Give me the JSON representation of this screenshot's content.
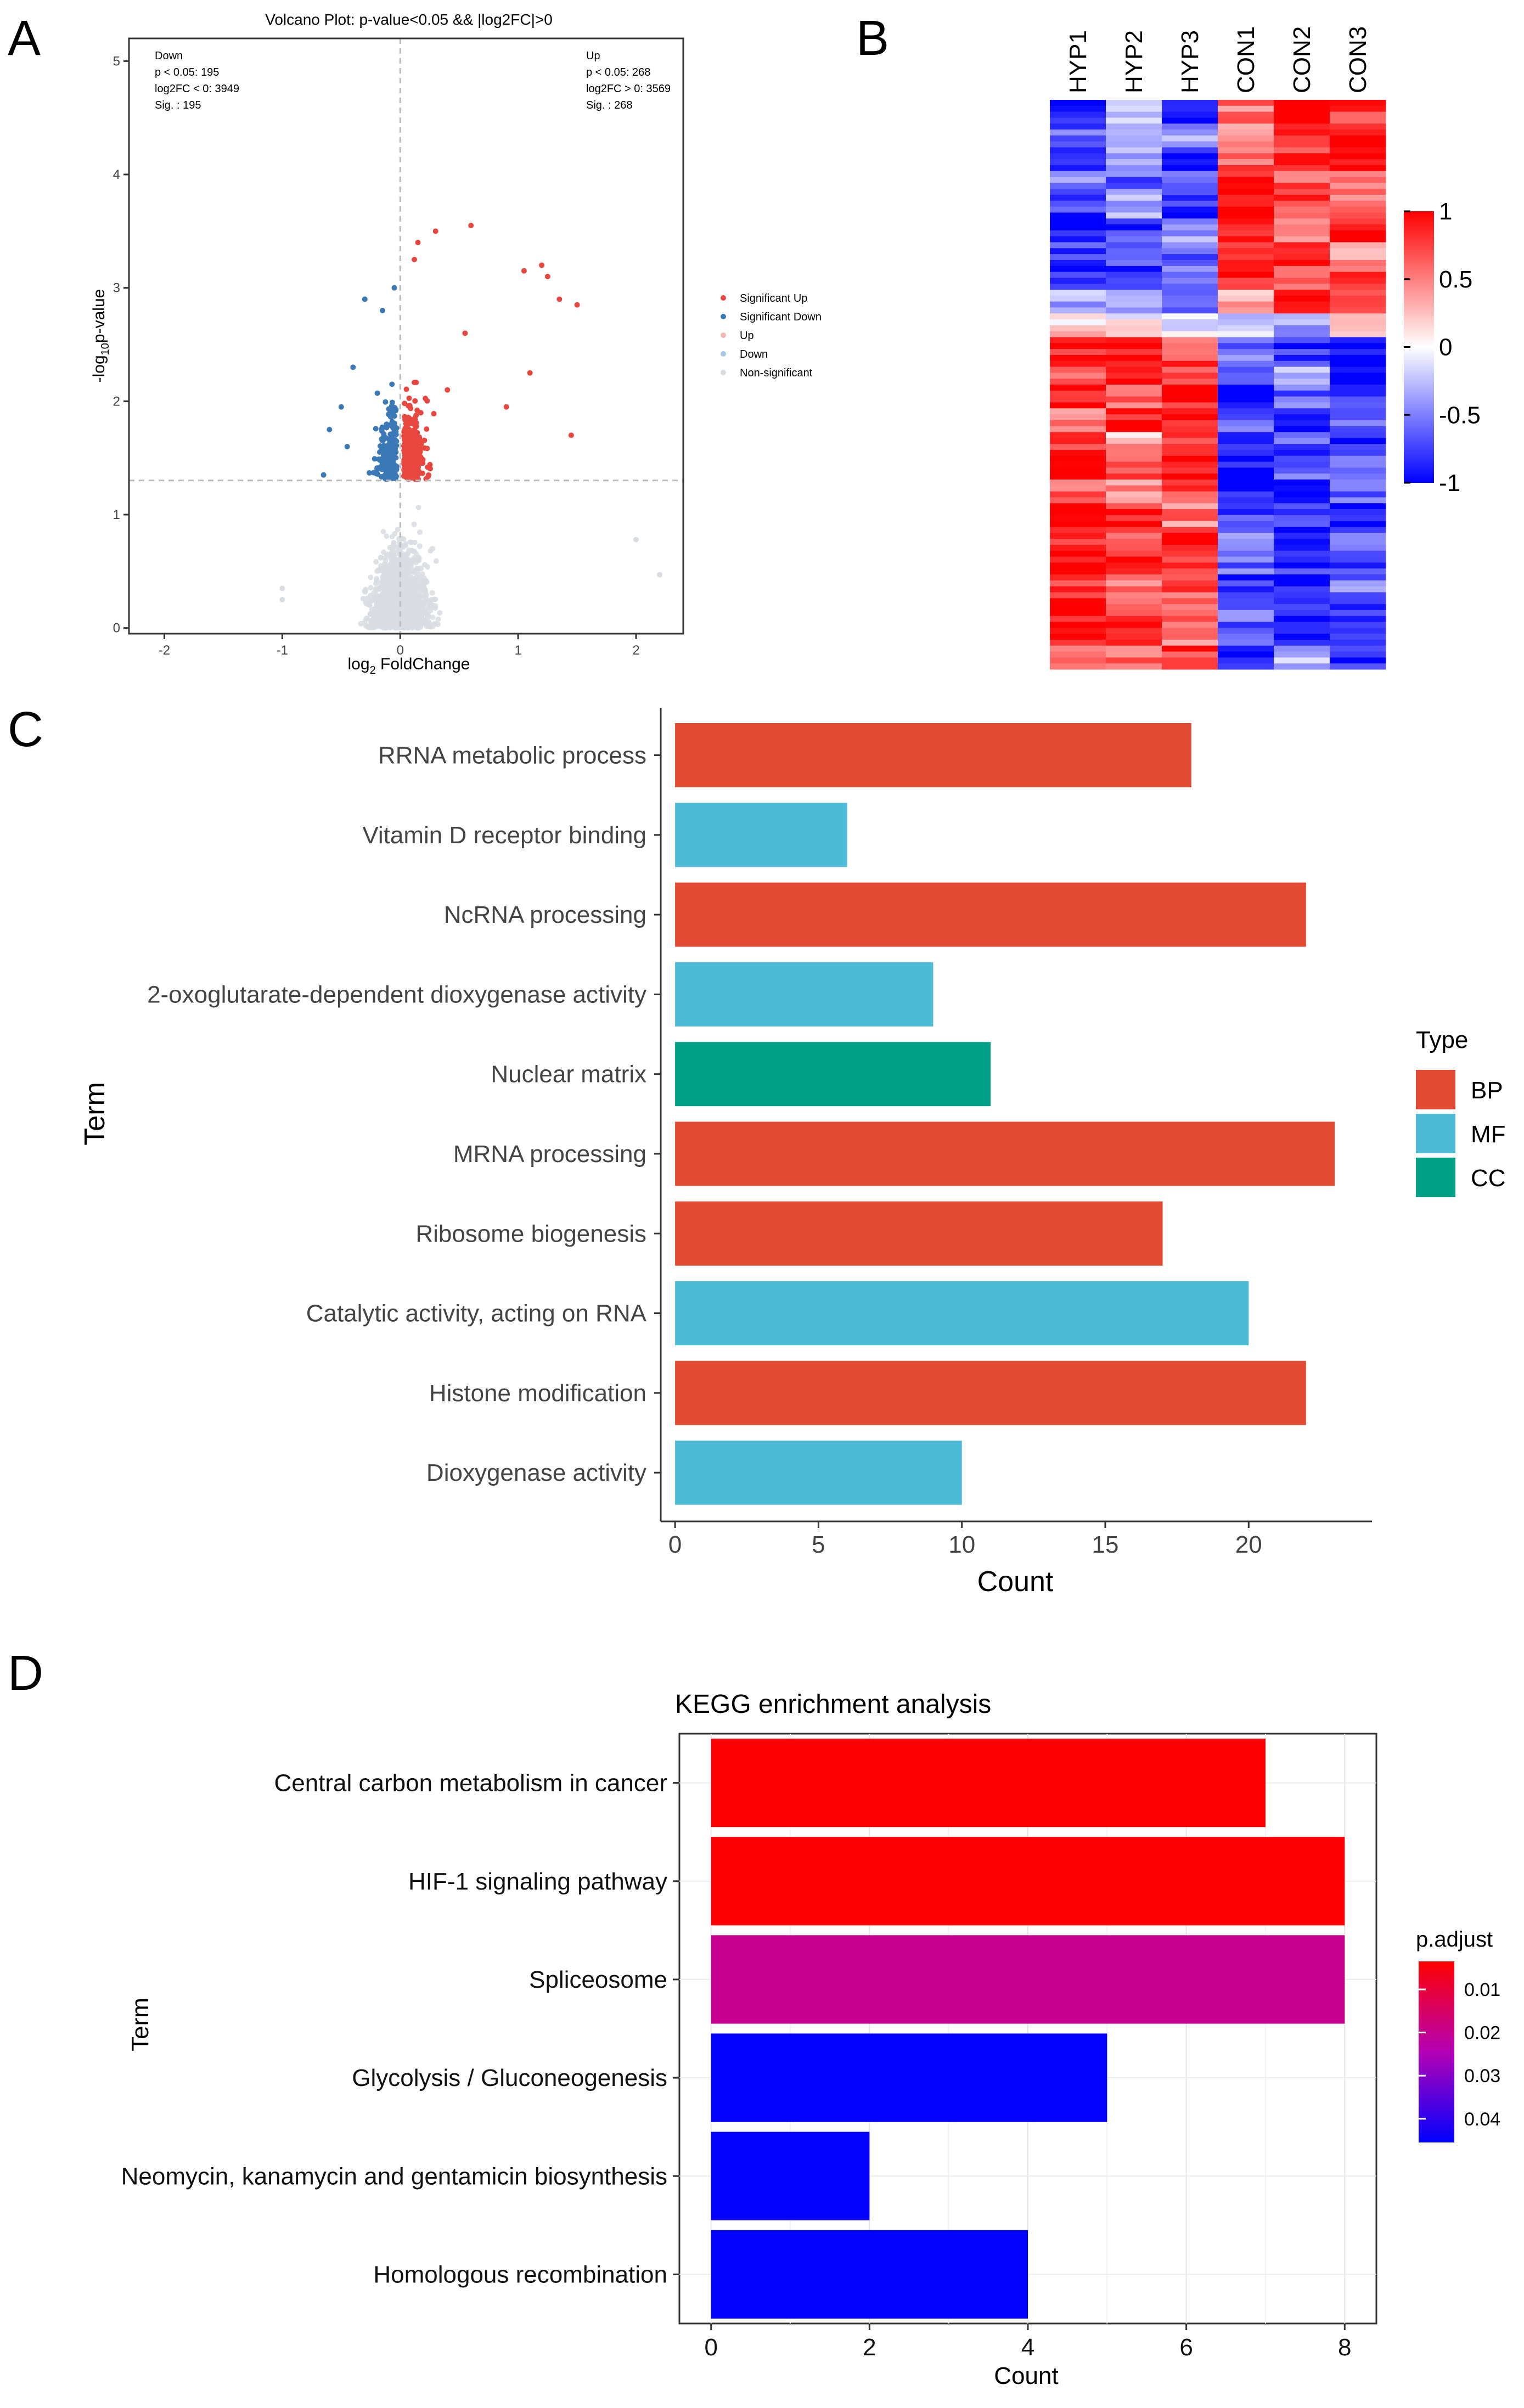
{
  "panels": {
    "A": "A",
    "B": "B",
    "C": "C",
    "D": "D"
  },
  "chart_data": [
    {
      "id": "A",
      "type": "scatter",
      "title": "Volcano Plot: p-value<0.05 && |log2FC|>0",
      "xlabel": "log2 FoldChange",
      "xlabel_base": "log",
      "xlabel_sub": "2",
      "xlabel_rest": " FoldChange",
      "ylabel_pre": "-log",
      "ylabel_sub": "10",
      "ylabel_post": "p-value",
      "xlim": [
        -2.3,
        2.4
      ],
      "ylim": [
        -0.05,
        5.2
      ],
      "x_ticks": [
        "-2",
        "-1",
        "0",
        "1",
        "2"
      ],
      "y_ticks": [
        "0",
        "1",
        "2",
        "3",
        "4",
        "5"
      ],
      "threshold_y": 1.301,
      "threshold_x": 0,
      "annot_down": [
        "Down",
        "p < 0.05: 195",
        "log2FC < 0: 3949",
        "Sig. : 195"
      ],
      "annot_up": [
        "Up",
        "p < 0.05: 268",
        "log2FC > 0: 3569",
        "Sig. : 268"
      ],
      "legend": [
        {
          "label": "Significant Up",
          "color": "#e8473f"
        },
        {
          "label": "Significant Down",
          "color": "#3a78b6"
        },
        {
          "label": "Up",
          "color": "#f4b8b3"
        },
        {
          "label": "Down",
          "color": "#a6c9e6"
        },
        {
          "label": "Non-significant",
          "color": "#d8dde3"
        }
      ],
      "highlight_points": [
        {
          "x": 0.6,
          "y": 3.55,
          "group": "up"
        },
        {
          "x": 0.3,
          "y": 3.5,
          "group": "up"
        },
        {
          "x": 0.15,
          "y": 3.4,
          "group": "up"
        },
        {
          "x": 0.12,
          "y": 3.25,
          "group": "up"
        },
        {
          "x": 1.2,
          "y": 3.2,
          "group": "up"
        },
        {
          "x": 1.25,
          "y": 3.1,
          "group": "up"
        },
        {
          "x": 1.05,
          "y": 3.15,
          "group": "up"
        },
        {
          "x": 1.5,
          "y": 2.85,
          "group": "up"
        },
        {
          "x": 1.35,
          "y": 2.9,
          "group": "up"
        },
        {
          "x": 0.55,
          "y": 2.6,
          "group": "up"
        },
        {
          "x": 1.1,
          "y": 2.25,
          "group": "up"
        },
        {
          "x": 0.9,
          "y": 1.95,
          "group": "up"
        },
        {
          "x": 1.45,
          "y": 1.7,
          "group": "up"
        },
        {
          "x": 0.4,
          "y": 2.1,
          "group": "up"
        },
        {
          "x": -0.05,
          "y": 3.0,
          "group": "down"
        },
        {
          "x": -0.15,
          "y": 2.8,
          "group": "down"
        },
        {
          "x": -0.3,
          "y": 2.9,
          "group": "down"
        },
        {
          "x": -0.4,
          "y": 2.3,
          "group": "down"
        },
        {
          "x": -0.6,
          "y": 1.75,
          "group": "down"
        },
        {
          "x": -0.65,
          "y": 1.35,
          "group": "down"
        },
        {
          "x": -0.5,
          "y": 1.95,
          "group": "down"
        },
        {
          "x": -0.45,
          "y": 1.6,
          "group": "down"
        },
        {
          "x": 2.0,
          "y": 0.78,
          "group": "ns"
        },
        {
          "x": 2.2,
          "y": 0.47,
          "group": "ns"
        },
        {
          "x": -1.0,
          "y": 0.35,
          "group": "ns"
        },
        {
          "x": -1.0,
          "y": 0.25,
          "group": "ns"
        }
      ]
    },
    {
      "id": "B",
      "type": "heatmap",
      "columns": [
        "HYP1",
        "HYP2",
        "HYP3",
        "CON1",
        "CON2",
        "CON3"
      ],
      "colorbar_ticks": [
        "1",
        "0.5",
        "0",
        "-0.5",
        "-1"
      ],
      "colorbar_range": [
        -1,
        1
      ],
      "colors": {
        "high": "#ff0000",
        "mid": "#ffffff",
        "low": "#0000ff"
      },
      "row_profile": [
        [
          -1,
          -0.3,
          -1,
          0.5,
          1,
          0.8
        ],
        [
          -0.6,
          -0.5,
          -0.4,
          0.3,
          0.9,
          1
        ],
        [
          -0.9,
          -0.3,
          -1,
          0.6,
          0.8,
          0.9
        ],
        [
          -0.5,
          -0.6,
          -0.7,
          1,
          0.6,
          0.4
        ],
        [
          -0.8,
          -0.4,
          -0.9,
          0.9,
          0.7,
          0.6
        ],
        [
          -1,
          -0.8,
          -0.3,
          1,
          0.5,
          0.9
        ],
        [
          -0.7,
          -0.6,
          -0.6,
          0.8,
          1,
          0.4
        ],
        [
          -0.9,
          -0.9,
          -0.5,
          0.9,
          0.7,
          0.7
        ],
        [
          -0.3,
          -0.4,
          -0.8,
          0.4,
          1,
          0.8
        ],
        [
          0.2,
          0,
          -0.1,
          -0.2,
          -0.3,
          0.1
        ],
        [
          0.9,
          0.8,
          0.7,
          -0.5,
          -0.8,
          -1
        ],
        [
          0.7,
          1,
          0.8,
          -0.7,
          -0.4,
          -1
        ],
        [
          1,
          0.6,
          0.9,
          -0.9,
          -0.6,
          -0.8
        ],
        [
          0.5,
          0.9,
          1,
          -0.6,
          -1,
          -0.5
        ],
        [
          0.8,
          0.3,
          0.7,
          -0.8,
          -0.7,
          -0.9
        ],
        [
          1,
          0.7,
          1,
          -1,
          -0.5,
          -0.7
        ],
        [
          0.6,
          0.5,
          0.8,
          -0.9,
          -1,
          -0.6
        ],
        [
          0.9,
          0.9,
          0.5,
          -0.7,
          -0.8,
          -1
        ],
        [
          0.7,
          0.6,
          1,
          -0.4,
          -1,
          -0.7
        ],
        [
          1,
          0.8,
          0.9,
          -0.6,
          -0.8,
          -0.8
        ],
        [
          0.8,
          0.5,
          0.7,
          -0.9,
          -1,
          -0.5
        ],
        [
          1,
          0.7,
          0.6,
          -0.5,
          -0.9,
          -0.8
        ],
        [
          0.9,
          0.9,
          0.4,
          -0.7,
          -1,
          -0.6
        ],
        [
          0.7,
          0.6,
          0.8,
          -1,
          -0.2,
          -0.9
        ]
      ]
    },
    {
      "id": "C",
      "type": "bar",
      "orientation": "horizontal",
      "xlabel": "Count",
      "ylabel": "Term",
      "xlim": [
        -0.5,
        24.3
      ],
      "x_ticks": [
        0,
        5,
        10,
        15,
        20
      ],
      "legend_title": "Type",
      "legend": [
        {
          "label": "BP",
          "color": "#e34a33"
        },
        {
          "label": "MF",
          "color": "#4dbbd5"
        },
        {
          "label": "CC",
          "color": "#00a087"
        }
      ],
      "categories": [
        "RRNA metabolic process",
        "Vitamin D receptor binding",
        "NcRNA processing",
        "2-oxoglutarate-dependent dioxygenase activity",
        "Nuclear matrix",
        "MRNA processing",
        "Ribosome biogenesis",
        "Catalytic activity, acting on RNA",
        "Histone modification",
        "Dioxygenase activity"
      ],
      "values": [
        18,
        6,
        22,
        9,
        11,
        23,
        17,
        20,
        22,
        10
      ],
      "types": [
        "BP",
        "MF",
        "BP",
        "MF",
        "CC",
        "BP",
        "BP",
        "MF",
        "BP",
        "MF"
      ]
    },
    {
      "id": "D",
      "type": "bar",
      "orientation": "horizontal",
      "title": "KEGG enrichment analysis",
      "xlabel": "Count",
      "ylabel": "Term",
      "xlim": [
        -0.4,
        8.4
      ],
      "x_ticks": [
        0,
        2,
        4,
        6,
        8
      ],
      "legend_title": "p.adjust",
      "colorbar_ticks": [
        "0.01",
        "0.02",
        "0.03",
        "0.04"
      ],
      "colorbar_values": [
        0.01,
        0.02,
        0.03,
        0.04
      ],
      "colorbar_range": [
        0.0035,
        0.0455
      ],
      "categories": [
        "Central carbon metabolism in cancer",
        "HIF-1 signaling pathway",
        "Spliceosome",
        "Glycolysis / Gluconeogenesis",
        "Neomycin, kanamycin and gentamicin biosynthesis",
        "Homologous recombination"
      ],
      "values": [
        7,
        8,
        8,
        5,
        2,
        4
      ],
      "p_adjust": [
        0.004,
        0.004,
        0.02,
        0.045,
        0.045,
        0.045
      ],
      "colors": {
        "low_p": "#ff0000",
        "high_p": "#0000ff"
      }
    }
  ]
}
